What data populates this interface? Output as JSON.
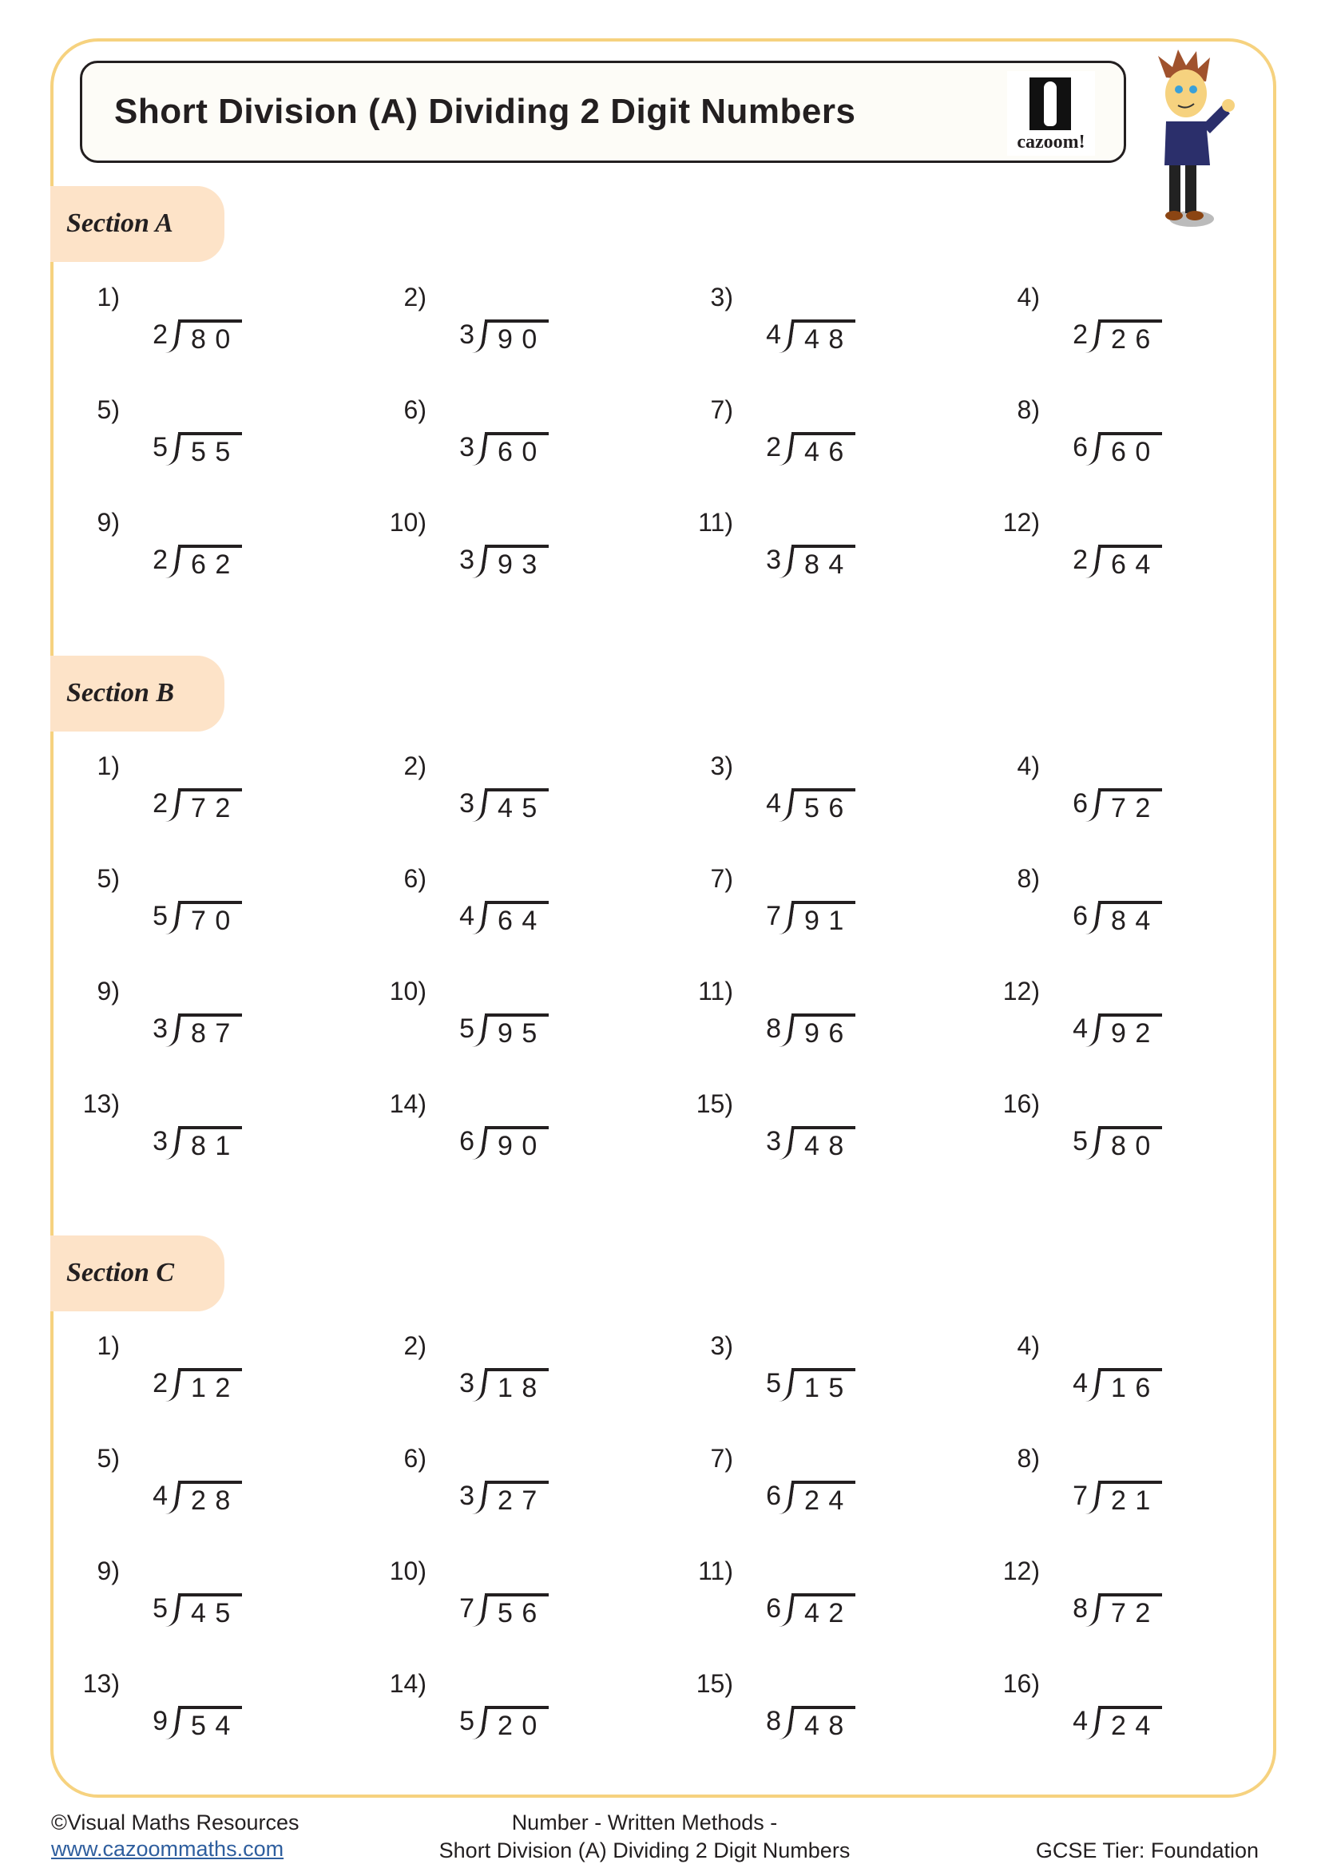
{
  "title": "Short Division (A) Dividing 2 Digit Numbers",
  "logo_text": "cazoom!",
  "sections": [
    {
      "label": "Section A",
      "problems": [
        {
          "n": "1)",
          "divisor": "2",
          "dividend": "8 0"
        },
        {
          "n": "2)",
          "divisor": "3",
          "dividend": "9 0"
        },
        {
          "n": "3)",
          "divisor": "4",
          "dividend": "4 8"
        },
        {
          "n": "4)",
          "divisor": "2",
          "dividend": "2 6"
        },
        {
          "n": "5)",
          "divisor": "5",
          "dividend": "5 5"
        },
        {
          "n": "6)",
          "divisor": "3",
          "dividend": "6 0"
        },
        {
          "n": "7)",
          "divisor": "2",
          "dividend": "4 6"
        },
        {
          "n": "8)",
          "divisor": "6",
          "dividend": "6 0"
        },
        {
          "n": "9)",
          "divisor": "2",
          "dividend": "6 2"
        },
        {
          "n": "10)",
          "divisor": "3",
          "dividend": "9 3"
        },
        {
          "n": "11)",
          "divisor": "3",
          "dividend": "8 4"
        },
        {
          "n": "12)",
          "divisor": "2",
          "dividend": "6 4"
        }
      ]
    },
    {
      "label": "Section B",
      "problems": [
        {
          "n": "1)",
          "divisor": "2",
          "dividend": "7 2"
        },
        {
          "n": "2)",
          "divisor": "3",
          "dividend": "4 5"
        },
        {
          "n": "3)",
          "divisor": "4",
          "dividend": "5 6"
        },
        {
          "n": "4)",
          "divisor": "6",
          "dividend": "7 2"
        },
        {
          "n": "5)",
          "divisor": "5",
          "dividend": "7 0"
        },
        {
          "n": "6)",
          "divisor": "4",
          "dividend": "6 4"
        },
        {
          "n": "7)",
          "divisor": "7",
          "dividend": "9 1"
        },
        {
          "n": "8)",
          "divisor": "6",
          "dividend": "8 4"
        },
        {
          "n": "9)",
          "divisor": "3",
          "dividend": "8 7"
        },
        {
          "n": "10)",
          "divisor": "5",
          "dividend": "9 5"
        },
        {
          "n": "11)",
          "divisor": "8",
          "dividend": "9 6"
        },
        {
          "n": "12)",
          "divisor": "4",
          "dividend": "9 2"
        },
        {
          "n": "13)",
          "divisor": "3",
          "dividend": "8 1"
        },
        {
          "n": "14)",
          "divisor": "6",
          "dividend": "9 0"
        },
        {
          "n": "15)",
          "divisor": "3",
          "dividend": "4 8"
        },
        {
          "n": "16)",
          "divisor": "5",
          "dividend": "8 0"
        }
      ]
    },
    {
      "label": "Section C",
      "problems": [
        {
          "n": "1)",
          "divisor": "2",
          "dividend": "1 2"
        },
        {
          "n": "2)",
          "divisor": "3",
          "dividend": "1 8"
        },
        {
          "n": "3)",
          "divisor": "5",
          "dividend": "1 5"
        },
        {
          "n": "4)",
          "divisor": "4",
          "dividend": "1 6"
        },
        {
          "n": "5)",
          "divisor": "4",
          "dividend": "2 8"
        },
        {
          "n": "6)",
          "divisor": "3",
          "dividend": "2 7"
        },
        {
          "n": "7)",
          "divisor": "6",
          "dividend": "2 4"
        },
        {
          "n": "8)",
          "divisor": "7",
          "dividend": "2 1"
        },
        {
          "n": "9)",
          "divisor": "5",
          "dividend": "4 5"
        },
        {
          "n": "10)",
          "divisor": "7",
          "dividend": "5 6"
        },
        {
          "n": "11)",
          "divisor": "6",
          "dividend": "4 2"
        },
        {
          "n": "12)",
          "divisor": "8",
          "dividend": "7 2"
        },
        {
          "n": "13)",
          "divisor": "9",
          "dividend": "5 4"
        },
        {
          "n": "14)",
          "divisor": "5",
          "dividend": "2 0"
        },
        {
          "n": "15)",
          "divisor": "8",
          "dividend": "4 8"
        },
        {
          "n": "16)",
          "divisor": "4",
          "dividend": "2 4"
        }
      ]
    }
  ],
  "footer": {
    "copyright": "©Visual Maths Resources",
    "website": "www.cazoommaths.com",
    "topic_line1": "Number - Written Methods -",
    "topic_line2": "Short Division (A) Dividing 2 Digit Numbers",
    "tier": "GCSE Tier: Foundation"
  },
  "colors": {
    "frame": "#f6d27f",
    "section_tab": "#fde3c8",
    "link": "#2e5e9e"
  }
}
